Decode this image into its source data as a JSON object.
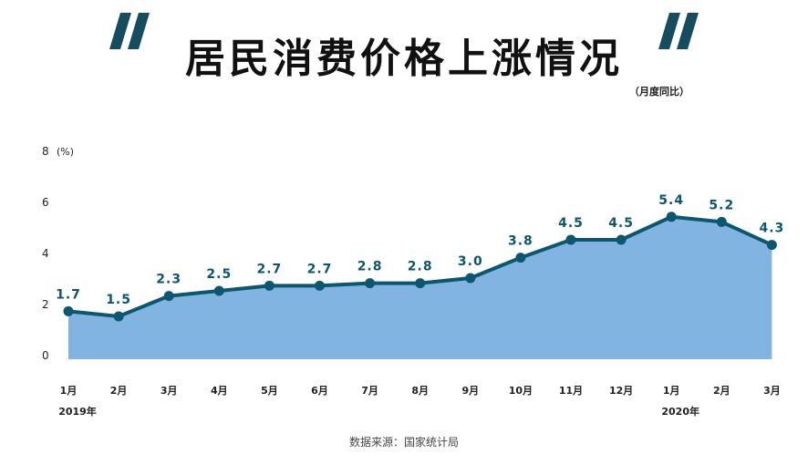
{
  "title": "居民消费价格上涨情况",
  "subtitle": "（月度同比）",
  "unit_label": "(%)",
  "source": "数据来源：国家统计局",
  "colors": {
    "area_fill": "#82b4e2",
    "line": "#0d5670",
    "label": "#0d5670",
    "quote": "#154d5e"
  },
  "chart_data": {
    "type": "area",
    "categories": [
      "1月",
      "2月",
      "3月",
      "4月",
      "5月",
      "6月",
      "7月",
      "8月",
      "9月",
      "10月",
      "11月",
      "12月",
      "1月",
      "2月",
      "3月"
    ],
    "year_labels": [
      {
        "index": 0,
        "label": "2019年"
      },
      {
        "index": 12,
        "label": "2020年"
      }
    ],
    "series": [
      {
        "values": [
          1.7,
          1.5,
          2.3,
          2.5,
          2.7,
          2.7,
          2.8,
          2.8,
          3.0,
          3.8,
          4.5,
          4.5,
          5.4,
          5.2,
          4.3
        ]
      }
    ],
    "data_labels": [
      "1.7",
      "1.5",
      "2.3",
      "2.5",
      "2.7",
      "2.7",
      "2.8",
      "2.8",
      "3.0",
      "3.8",
      "4.5",
      "4.5",
      "5.4",
      "5.2",
      "4.3"
    ],
    "yticks": [
      "0",
      "2",
      "4",
      "6",
      "8"
    ],
    "ylim": [
      0,
      8
    ],
    "grid": false
  }
}
